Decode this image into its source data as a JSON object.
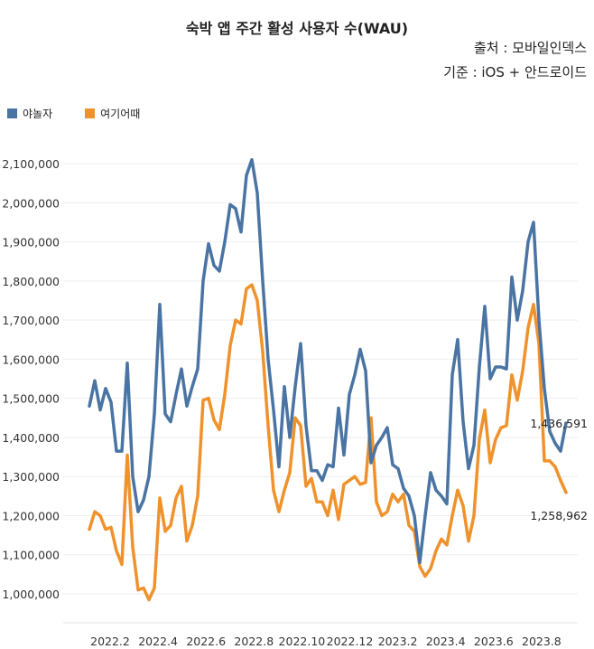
{
  "title": "숙박 앱 주간 활성 사용자 수(WAU)",
  "source": "출처 : 모바일인덱스",
  "basis": "기준 : iOS + 안드로이드",
  "colors": {
    "야놀자": "#4a74a3",
    "여기어때": "#f0922c"
  },
  "chart_data": {
    "type": "line",
    "title": "숙박 앱 주간 활성 사용자 수(WAU)",
    "xlabel": "",
    "ylabel": "",
    "ylim": [
      1000000,
      2100000
    ],
    "yticks": [
      "1,000,000",
      "1,100,000",
      "1,200,000",
      "1,300,000",
      "1,400,000",
      "1,500,000",
      "1,600,000",
      "1,700,000",
      "1,800,000",
      "1,900,000",
      "2,000,000",
      "2,100,000"
    ],
    "xticks": [
      "2022.2",
      "2022.4",
      "2022.6",
      "2022.8",
      "2022.10",
      "2022.12",
      "2023.2",
      "2023.4",
      "2023.6",
      "2023.8"
    ],
    "grid": true,
    "legend": "top-left",
    "series": [
      {
        "name": "야놀자",
        "color": "#4a74a3",
        "end_label": "1,436,591",
        "values": [
          1480000,
          1545000,
          1470000,
          1525000,
          1490000,
          1365000,
          1365000,
          1590000,
          1300000,
          1210000,
          1240000,
          1300000,
          1460000,
          1740000,
          1460000,
          1440000,
          1510000,
          1575000,
          1480000,
          1530000,
          1575000,
          1800000,
          1895000,
          1840000,
          1825000,
          1900000,
          1995000,
          1985000,
          1925000,
          2070000,
          2110000,
          2025000,
          1800000,
          1600000,
          1470000,
          1325000,
          1530000,
          1400000,
          1530000,
          1640000,
          1430000,
          1315000,
          1315000,
          1290000,
          1330000,
          1325000,
          1475000,
          1355000,
          1510000,
          1560000,
          1625000,
          1570000,
          1335000,
          1380000,
          1400000,
          1425000,
          1330000,
          1320000,
          1270000,
          1250000,
          1200000,
          1080000,
          1200000,
          1310000,
          1265000,
          1250000,
          1230000,
          1560000,
          1650000,
          1440000,
          1320000,
          1380000,
          1580000,
          1735000,
          1550000,
          1580000,
          1580000,
          1575000,
          1810000,
          1700000,
          1775000,
          1900000,
          1950000,
          1700000,
          1525000,
          1415000,
          1385000,
          1365000,
          1436591
        ]
      },
      {
        "name": "여기어때",
        "color": "#f0922c",
        "end_label": "1,258,962",
        "values": [
          1165000,
          1210000,
          1200000,
          1165000,
          1170000,
          1110000,
          1075000,
          1355000,
          1120000,
          1010000,
          1015000,
          985000,
          1015000,
          1245000,
          1160000,
          1175000,
          1245000,
          1275000,
          1135000,
          1175000,
          1250000,
          1495000,
          1500000,
          1445000,
          1420000,
          1510000,
          1635000,
          1700000,
          1690000,
          1780000,
          1790000,
          1750000,
          1620000,
          1430000,
          1265000,
          1210000,
          1265000,
          1310000,
          1450000,
          1430000,
          1275000,
          1295000,
          1235000,
          1235000,
          1200000,
          1265000,
          1190000,
          1280000,
          1290000,
          1300000,
          1280000,
          1285000,
          1450000,
          1235000,
          1200000,
          1210000,
          1255000,
          1235000,
          1255000,
          1175000,
          1160000,
          1070000,
          1045000,
          1065000,
          1110000,
          1140000,
          1125000,
          1200000,
          1265000,
          1225000,
          1135000,
          1200000,
          1395000,
          1470000,
          1335000,
          1395000,
          1425000,
          1430000,
          1560000,
          1495000,
          1570000,
          1680000,
          1740000,
          1640000,
          1340000,
          1340000,
          1325000,
          1290000,
          1258962
        ]
      }
    ]
  }
}
